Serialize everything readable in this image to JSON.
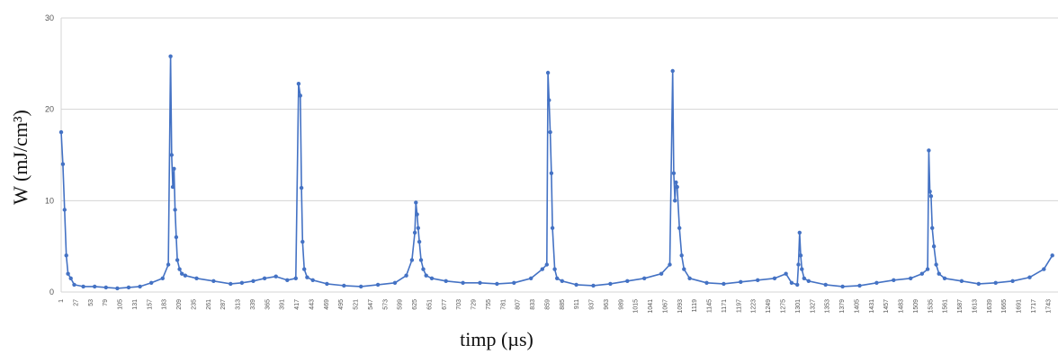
{
  "chart_data": {
    "type": "line",
    "title": "",
    "xlabel": "timp (µs)",
    "ylabel": "W (mJ/cm³)",
    "ylim": [
      0,
      30
    ],
    "yticks": [
      0,
      10,
      20,
      30
    ],
    "grid": true,
    "series_color": "#4472C4",
    "xticks": [
      1,
      27,
      53,
      79,
      105,
      131,
      157,
      183,
      209,
      235,
      261,
      287,
      313,
      339,
      365,
      391,
      417,
      443,
      469,
      495,
      521,
      547,
      573,
      599,
      625,
      651,
      677,
      703,
      729,
      755,
      781,
      807,
      833,
      859,
      885,
      911,
      937,
      963,
      989,
      1015,
      1041,
      1067,
      1093,
      1119,
      1145,
      1171,
      1197,
      1223,
      1249,
      1275,
      1301,
      1327,
      1353,
      1379,
      1405,
      1431,
      1457,
      1483,
      1509,
      1535,
      1561,
      1587,
      1613,
      1639,
      1665,
      1691,
      1717,
      1743
    ],
    "series": [
      {
        "x": [
          1,
          4,
          7,
          10,
          13,
          18,
          24,
          40,
          60,
          80,
          100,
          120,
          140,
          160,
          180,
          190,
          194,
          196,
          198,
          200,
          202,
          204,
          206,
          210,
          214,
          220,
          240,
          270,
          300,
          320,
          340,
          360,
          380,
          400,
          415,
          420,
          423,
          425,
          427,
          430,
          435,
          445,
          470,
          500,
          530,
          560,
          590,
          610,
          620,
          625,
          627,
          629,
          631,
          633,
          636,
          640,
          645,
          655,
          680,
          710,
          740,
          770,
          800,
          830,
          850,
          858,
          860,
          862,
          864,
          866,
          868,
          872,
          876,
          885,
          910,
          940,
          970,
          1000,
          1030,
          1060,
          1075,
          1080,
          1082,
          1084,
          1086,
          1088,
          1092,
          1096,
          1100,
          1110,
          1140,
          1170,
          1200,
          1230,
          1260,
          1280,
          1290,
          1300,
          1302,
          1304,
          1306,
          1308,
          1312,
          1320,
          1350,
          1380,
          1410,
          1440,
          1470,
          1500,
          1520,
          1530,
          1532,
          1534,
          1536,
          1538,
          1541,
          1545,
          1550,
          1560,
          1590,
          1620,
          1650,
          1680,
          1710,
          1735,
          1750
        ],
        "y": [
          17.5,
          14,
          9,
          4,
          2,
          1.5,
          0.8,
          0.6,
          0.6,
          0.5,
          0.4,
          0.5,
          0.6,
          1.0,
          1.5,
          3,
          25.8,
          15,
          11.5,
          13.5,
          9,
          6,
          3.5,
          2.5,
          2.0,
          1.8,
          1.5,
          1.2,
          0.9,
          1.0,
          1.2,
          1.5,
          1.7,
          1.3,
          1.5,
          22.8,
          21.5,
          11.4,
          5.5,
          2.5,
          1.6,
          1.3,
          0.9,
          0.7,
          0.6,
          0.8,
          1.0,
          1.8,
          3.5,
          6.5,
          9.8,
          8.5,
          7.0,
          5.5,
          3.5,
          2.5,
          1.8,
          1.5,
          1.2,
          1.0,
          1.0,
          0.9,
          1.0,
          1.5,
          2.5,
          3,
          24,
          21,
          17.5,
          13,
          7,
          2.5,
          1.5,
          1.2,
          0.8,
          0.7,
          0.9,
          1.2,
          1.5,
          2.0,
          3,
          24.2,
          13,
          10,
          12.0,
          11.5,
          7,
          4,
          2.5,
          1.5,
          1.0,
          0.9,
          1.1,
          1.3,
          1.5,
          2.0,
          1.0,
          0.8,
          3,
          6.5,
          4,
          2.5,
          1.5,
          1.2,
          0.8,
          0.6,
          0.7,
          1.0,
          1.3,
          1.5,
          2,
          2.5,
          15.5,
          11,
          10.5,
          7,
          5,
          3,
          2,
          1.5,
          1.2,
          0.9,
          1.0,
          1.2,
          1.6,
          2.5,
          4.0
        ]
      }
    ]
  }
}
